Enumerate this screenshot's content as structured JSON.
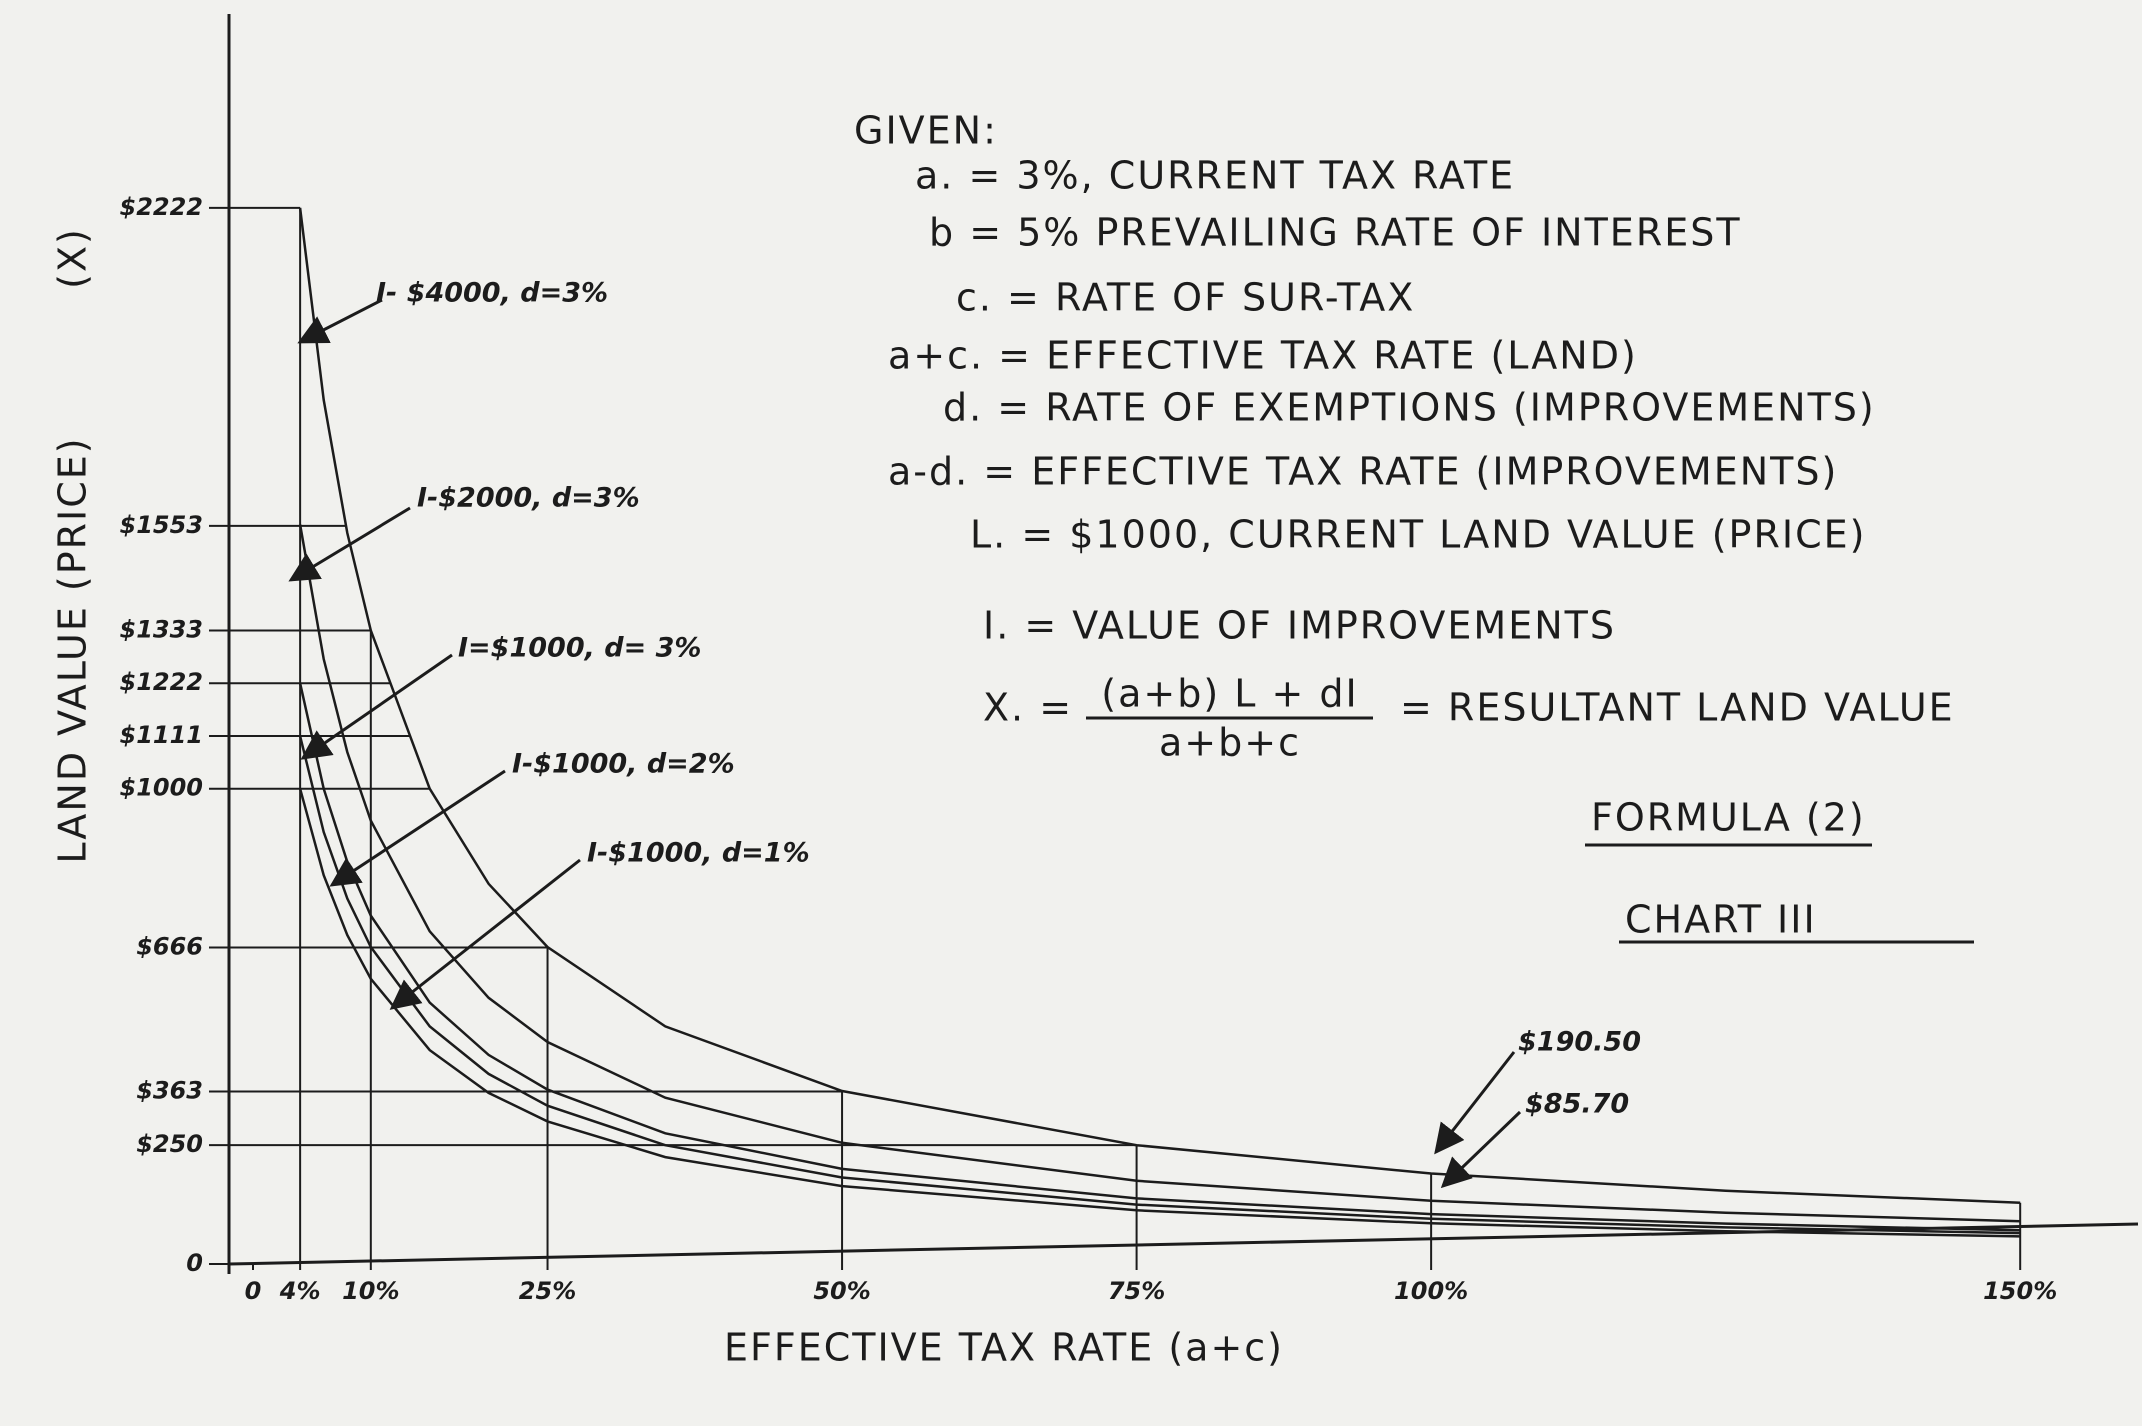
{
  "chart_data": {
    "type": "line",
    "y_label": "LAND VALUE (PRICE)",
    "y_label_symbol": "(X)",
    "x_label": "EFFECTIVE TAX RATE (a+c)",
    "given_title": "GIVEN:",
    "given": [
      "a. = 3%, CURRENT TAX RATE",
      "b = 5% PREVAILING RATE OF INTEREST",
      "c. = RATE OF SUR-TAX",
      "a+c. = EFFECTIVE TAX RATE (LAND)",
      "d. = RATE OF EXEMPTIONS (IMPROVEMENTS)",
      "a-d. = EFFECTIVE TAX RATE (IMPROVEMENTS)",
      "L. = $1000, CURRENT LAND VALUE (PRICE)",
      "I. = VALUE OF IMPROVEMENTS"
    ],
    "formula": {
      "lhs": "X. =",
      "numerator": "(a+b) L + dI",
      "denominator": "a+b+c",
      "rhs": "= RESULTANT LAND VALUE"
    },
    "formula_label": "FORMULA (2)",
    "title": "CHART III",
    "annotations": [
      "$190.50",
      "$85.70"
    ],
    "x": [
      4,
      6,
      8,
      10,
      15,
      20,
      25,
      35,
      50,
      75,
      100,
      125,
      150
    ],
    "xlim": [
      0,
      160
    ],
    "xticks": [
      0,
      {
        "value": 4,
        "label": "4%"
      },
      {
        "value": 10,
        "label": "10%"
      },
      {
        "value": 25,
        "label": "25%"
      },
      {
        "value": 50,
        "label": "50%"
      },
      {
        "value": 75,
        "label": "75%"
      },
      {
        "value": 100,
        "label": "100%"
      },
      {
        "value": 150,
        "label": "150%"
      }
    ],
    "ylim": [
      0,
      2630
    ],
    "yticks": [
      0,
      {
        "value": 250,
        "label": "$250"
      },
      {
        "value": 363,
        "label": "$363"
      },
      {
        "value": 666,
        "label": "$666"
      },
      {
        "value": 1000,
        "label": "$1000"
      },
      {
        "value": 1111,
        "label": "$1111"
      },
      {
        "value": 1222,
        "label": "$1222"
      },
      {
        "value": 1333,
        "label": "$1333"
      },
      {
        "value": 1553,
        "label": "$1553"
      },
      {
        "value": 2222,
        "label": "$2222"
      }
    ],
    "color": "#1c1c1c",
    "series": [
      {
        "name": "I- $4000, d=3%",
        "values": [
          2222,
          1818,
          1538,
          1333,
          1000,
          800,
          667,
          500,
          364,
          250,
          190.5,
          154,
          129
        ]
      },
      {
        "name": "I-$2000, d=3%",
        "values": [
          1556,
          1273,
          1077,
          933,
          700,
          560,
          467,
          350,
          255,
          175,
          133,
          108,
          90
        ]
      },
      {
        "name": "I=$1000, d= 3%",
        "values": [
          1222,
          1000,
          846,
          733,
          550,
          440,
          367,
          275,
          200,
          138,
          105,
          85,
          71
        ]
      },
      {
        "name": "I-$1000, d=2%",
        "values": [
          1111,
          909,
          769,
          667,
          500,
          400,
          333,
          250,
          182,
          125,
          95,
          77,
          65
        ]
      },
      {
        "name": "I-$1000, d=1%",
        "values": [
          1000,
          818,
          692,
          600,
          450,
          360,
          300,
          225,
          164,
          113,
          85.7,
          69,
          58
        ]
      }
    ]
  }
}
